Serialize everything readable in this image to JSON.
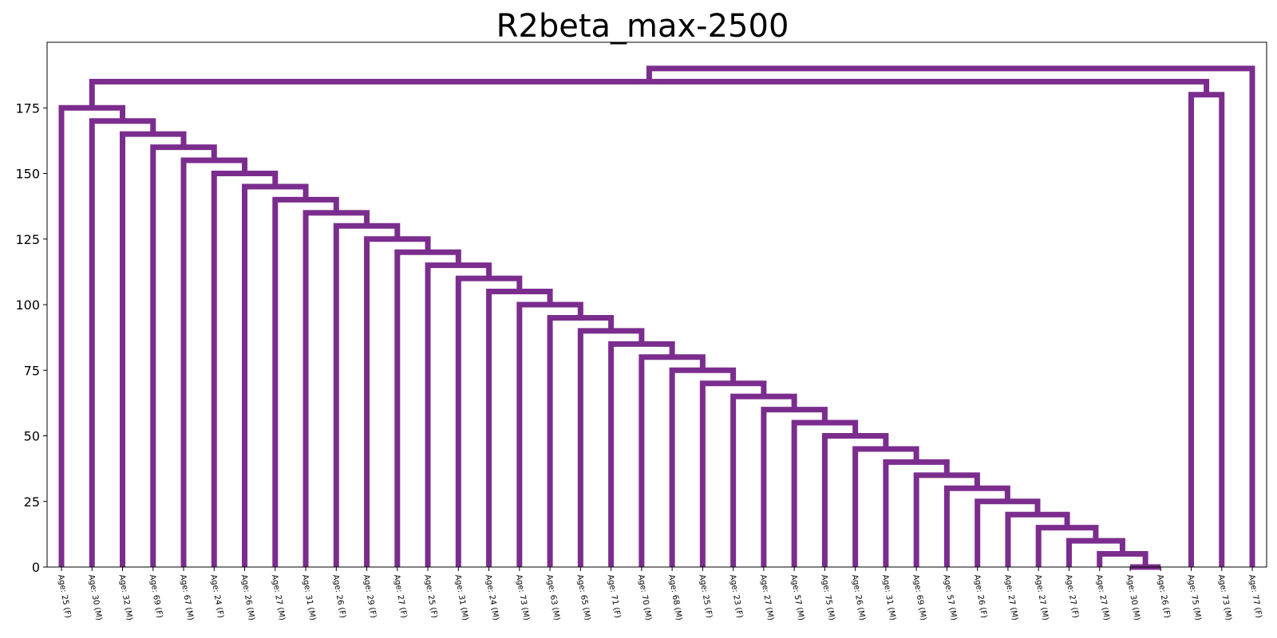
{
  "chart_data": {
    "type": "dendrogram",
    "title": "R2beta_max-2500",
    "xlabel": "",
    "ylabel": "",
    "ylim": [
      0,
      200
    ],
    "yticks": [
      0,
      25,
      50,
      75,
      100,
      125,
      150,
      175
    ],
    "grid": false,
    "link_color": "#7b2d8e",
    "leaves": [
      "Age: 25 (F)",
      "Age: 30 (M)",
      "Age: 32 (M)",
      "Age: 69 (F)",
      "Age: 67 (M)",
      "Age: 24 (F)",
      "Age: 26 (M)",
      "Age: 27 (M)",
      "Age: 31 (M)",
      "Age: 26 (F)",
      "Age: 29 (F)",
      "Age: 27 (F)",
      "Age: 25 (F)",
      "Age: 31 (M)",
      "Age: 24 (M)",
      "Age: 73 (M)",
      "Age: 63 (M)",
      "Age: 65 (M)",
      "Age: 71 (F)",
      "Age: 70 (M)",
      "Age: 68 (M)",
      "Age: 25 (F)",
      "Age: 23 (F)",
      "Age: 27 (M)",
      "Age: 57 (M)",
      "Age: 75 (M)",
      "Age: 26 (M)",
      "Age: 31 (M)",
      "Age: 69 (M)",
      "Age: 57 (M)",
      "Age: 26 (F)",
      "Age: 27 (M)",
      "Age: 27 (M)",
      "Age: 27 (F)",
      "Age: 27 (M)",
      "Age: 30 (M)",
      "Age: 26 (F)",
      "Age: 75 (M)",
      "Age: 73 (M)",
      "Age: 77 (F)"
    ],
    "chain_merge_heights": [
      0,
      5,
      10,
      15,
      20,
      25,
      30,
      35,
      40,
      45,
      50,
      55,
      60,
      65,
      70,
      75,
      80,
      85,
      90,
      95,
      100,
      105,
      110,
      115,
      120,
      125,
      130,
      135,
      140,
      145,
      150,
      155,
      160,
      165,
      170,
      175
    ],
    "pair_merge_height": 180,
    "upper_merge_height": 185,
    "root_merge_height": 190
  }
}
